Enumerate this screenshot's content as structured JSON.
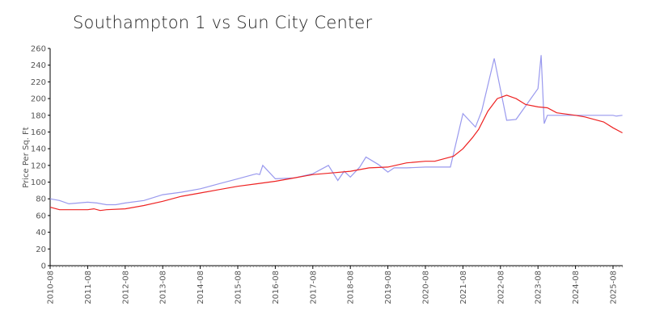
{
  "chart_data": {
    "type": "line",
    "title": "Southampton 1 vs Sun City Center",
    "xlabel": "",
    "ylabel": "Price Per Sq. Ft",
    "ylim": [
      0,
      260
    ],
    "yticks": [
      0,
      20,
      40,
      60,
      80,
      100,
      120,
      140,
      160,
      180,
      200,
      220,
      240,
      260
    ],
    "xticks": [
      "2010-08",
      "2011-08",
      "2012-08",
      "2013-08",
      "2014-08",
      "2015-08",
      "2016-08",
      "2017-08",
      "2018-08",
      "2019-08",
      "2020-08",
      "2021-08",
      "2022-08",
      "2023-08",
      "2024-08",
      "2025-08"
    ],
    "grid": false,
    "legend": null,
    "series": [
      {
        "name": "Southampton 1",
        "color": "#9999ee",
        "points": [
          [
            "2010-08",
            80
          ],
          [
            "2010-11",
            78
          ],
          [
            "2011-02",
            74
          ],
          [
            "2011-05",
            75
          ],
          [
            "2011-08",
            76
          ],
          [
            "2011-11",
            75
          ],
          [
            "2012-02",
            73
          ],
          [
            "2012-05",
            73
          ],
          [
            "2012-08",
            75
          ],
          [
            "2013-02",
            78
          ],
          [
            "2013-08",
            85
          ],
          [
            "2014-02",
            88
          ],
          [
            "2014-08",
            92
          ],
          [
            "2015-02",
            98
          ],
          [
            "2015-08",
            104
          ],
          [
            "2016-01",
            109
          ],
          [
            "2016-02",
            110
          ],
          [
            "2016-03",
            109
          ],
          [
            "2016-04",
            120
          ],
          [
            "2016-08",
            104
          ],
          [
            "2017-02",
            105
          ],
          [
            "2017-08",
            110
          ],
          [
            "2018-01",
            120
          ],
          [
            "2018-04",
            102
          ],
          [
            "2018-06",
            113
          ],
          [
            "2018-08",
            106
          ],
          [
            "2018-11",
            118
          ],
          [
            "2019-01",
            130
          ],
          [
            "2019-05",
            121
          ],
          [
            "2019-08",
            112
          ],
          [
            "2019-10",
            117
          ],
          [
            "2020-02",
            117
          ],
          [
            "2020-08",
            118
          ],
          [
            "2021-04",
            118
          ],
          [
            "2021-08",
            182
          ],
          [
            "2021-10",
            174
          ],
          [
            "2021-12",
            166
          ],
          [
            "2022-02",
            185
          ],
          [
            "2022-06",
            248
          ],
          [
            "2022-10",
            174
          ],
          [
            "2023-01",
            175
          ],
          [
            "2023-08",
            212
          ],
          [
            "2023-09",
            252
          ],
          [
            "2023-10",
            170
          ],
          [
            "2023-11",
            180
          ],
          [
            "2024-08",
            180
          ],
          [
            "2025-08",
            180
          ],
          [
            "2025-09",
            179
          ],
          [
            "2025-11",
            180
          ]
        ]
      },
      {
        "name": "Sun City Center",
        "color": "#ee2222",
        "points": [
          [
            "2010-08",
            70
          ],
          [
            "2010-11",
            67
          ],
          [
            "2011-02",
            67
          ],
          [
            "2011-08",
            67
          ],
          [
            "2011-10",
            68
          ],
          [
            "2011-12",
            66
          ],
          [
            "2012-02",
            67
          ],
          [
            "2012-08",
            68
          ],
          [
            "2013-02",
            72
          ],
          [
            "2013-08",
            77
          ],
          [
            "2014-02",
            83
          ],
          [
            "2014-08",
            87
          ],
          [
            "2015-02",
            91
          ],
          [
            "2015-08",
            95
          ],
          [
            "2016-02",
            98
          ],
          [
            "2016-08",
            101
          ],
          [
            "2017-02",
            105
          ],
          [
            "2017-08",
            109
          ],
          [
            "2018-02",
            111
          ],
          [
            "2018-08",
            113
          ],
          [
            "2019-02",
            117
          ],
          [
            "2019-08",
            118
          ],
          [
            "2020-02",
            123
          ],
          [
            "2020-08",
            125
          ],
          [
            "2020-11",
            125
          ],
          [
            "2021-02",
            128
          ],
          [
            "2021-05",
            131
          ],
          [
            "2021-08",
            140
          ],
          [
            "2021-11",
            153
          ],
          [
            "2022-01",
            163
          ],
          [
            "2022-04",
            185
          ],
          [
            "2022-07",
            200
          ],
          [
            "2022-10",
            204
          ],
          [
            "2023-01",
            200
          ],
          [
            "2023-04",
            193
          ],
          [
            "2023-08",
            190
          ],
          [
            "2023-11",
            189
          ],
          [
            "2024-02",
            183
          ],
          [
            "2024-08",
            180
          ],
          [
            "2024-11",
            178
          ],
          [
            "2025-02",
            175
          ],
          [
            "2025-05",
            172
          ],
          [
            "2025-08",
            165
          ],
          [
            "2025-11",
            159
          ]
        ]
      }
    ]
  }
}
